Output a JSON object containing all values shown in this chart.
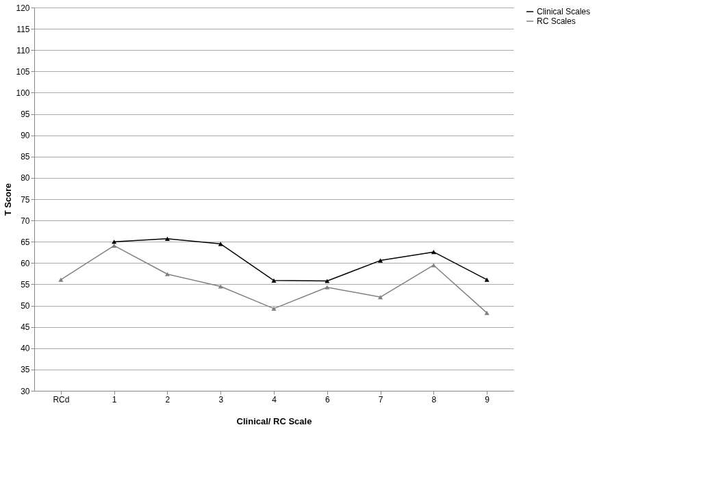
{
  "chart_data": {
    "type": "line",
    "xlabel": "Clinical/ RC Scale",
    "ylabel": "T Score",
    "categories": [
      "RCd",
      "1",
      "2",
      "3",
      "4",
      "6",
      "7",
      "8",
      "9"
    ],
    "series": [
      {
        "name": "Clinical Scales",
        "color": "#000000",
        "values": [
          null,
          65.0,
          65.7,
          64.5,
          55.9,
          55.8,
          60.6,
          62.6,
          56.1
        ]
      },
      {
        "name": "RC Scales",
        "color": "#808080",
        "values": [
          56.1,
          64.1,
          57.4,
          54.5,
          49.3,
          54.3,
          52.0,
          59.5,
          48.3
        ]
      }
    ],
    "ylim": [
      30,
      120
    ],
    "yticks": [
      30,
      35,
      40,
      45,
      50,
      55,
      60,
      65,
      70,
      75,
      80,
      85,
      90,
      95,
      100,
      105,
      110,
      115,
      120
    ],
    "grid": "y",
    "legend": "right",
    "marker": "triangle",
    "line_style": "solid"
  }
}
